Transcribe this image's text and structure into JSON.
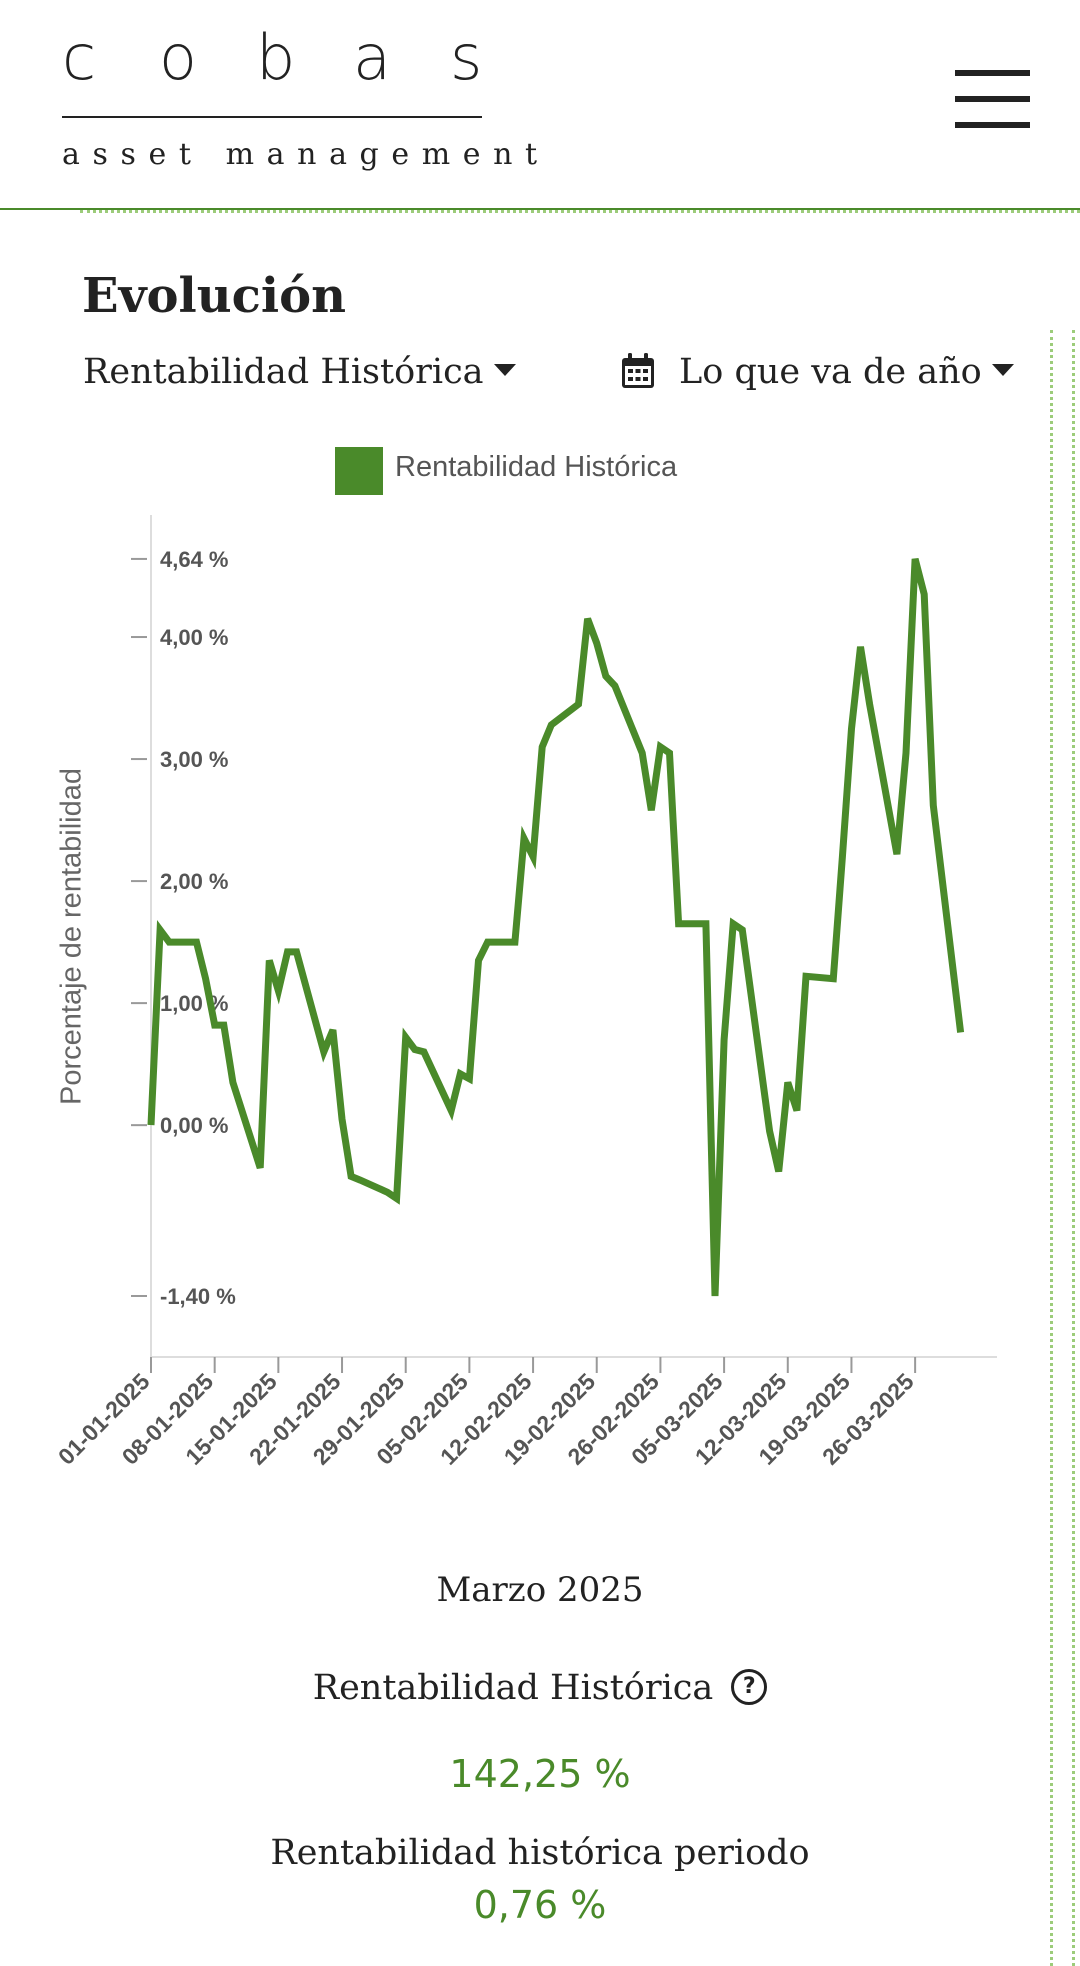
{
  "header": {
    "logo_letters": [
      "c",
      "o",
      "b",
      "a",
      "s"
    ],
    "logo_subtitle": "asset management",
    "menu_icon": "hamburger-menu-icon"
  },
  "section": {
    "title": "Evolución",
    "metric_dropdown": "Rentabilidad Histórica",
    "period_dropdown": "Lo que va de año",
    "calendar_icon": "calendar-icon"
  },
  "colors": {
    "accent": "#4a8a2a",
    "text": "#222222",
    "axis": "#dddddd"
  },
  "chart_data": {
    "type": "line",
    "legend": "Rentabilidad Histórica",
    "legend_position": "top",
    "ylabel": "Porcentaje de rentabilidad",
    "y_tick_values": [
      4.64,
      4.0,
      3.0,
      2.0,
      1.0,
      0.0,
      -1.4
    ],
    "y_tick_labels": [
      "4,64 %",
      "4,00 %",
      "3,00 %",
      "2,00 %",
      "1,00 %",
      "0,00 %",
      "-1,40 %"
    ],
    "ylim": [
      -1.9,
      5.0
    ],
    "x_range": [
      "2025-01-01",
      "2025-04-04"
    ],
    "x_tick_dates": [
      "2025-01-01",
      "2025-01-08",
      "2025-01-15",
      "2025-01-22",
      "2025-01-29",
      "2025-02-05",
      "2025-02-12",
      "2025-02-19",
      "2025-02-26",
      "2025-03-05",
      "2025-03-12",
      "2025-03-19",
      "2025-03-26"
    ],
    "x_tick_labels": [
      "01-01-2025",
      "08-01-2025",
      "15-01-2025",
      "22-01-2025",
      "29-01-2025",
      "05-02-2025",
      "12-02-2025",
      "19-02-2025",
      "26-02-2025",
      "05-03-2025",
      "12-03-2025",
      "19-03-2025",
      "26-03-2025"
    ],
    "grid": false,
    "series": [
      {
        "name": "Rentabilidad Histórica",
        "dates": [
          "2025-01-01",
          "2025-01-02",
          "2025-01-03",
          "2025-01-06",
          "2025-01-07",
          "2025-01-08",
          "2025-01-09",
          "2025-01-10",
          "2025-01-13",
          "2025-01-14",
          "2025-01-15",
          "2025-01-16",
          "2025-01-17",
          "2025-01-20",
          "2025-01-21",
          "2025-01-22",
          "2025-01-23",
          "2025-01-24",
          "2025-01-27",
          "2025-01-28",
          "2025-01-29",
          "2025-01-30",
          "2025-01-31",
          "2025-02-03",
          "2025-02-04",
          "2025-02-05",
          "2025-02-06",
          "2025-02-07",
          "2025-02-10",
          "2025-02-11",
          "2025-02-12",
          "2025-02-13",
          "2025-02-14",
          "2025-02-17",
          "2025-02-18",
          "2025-02-19",
          "2025-02-20",
          "2025-02-21",
          "2025-02-24",
          "2025-02-25",
          "2025-02-26",
          "2025-02-27",
          "2025-02-28",
          "2025-03-03",
          "2025-03-04",
          "2025-03-05",
          "2025-03-06",
          "2025-03-07",
          "2025-03-10",
          "2025-03-11",
          "2025-03-12",
          "2025-03-13",
          "2025-03-14",
          "2025-03-17",
          "2025-03-18",
          "2025-03-19",
          "2025-03-20",
          "2025-03-21",
          "2025-03-24",
          "2025-03-25",
          "2025-03-26",
          "2025-03-27",
          "2025-03-28",
          "2025-03-31"
        ],
        "values": [
          0.0,
          1.6,
          1.5,
          1.5,
          1.2,
          0.82,
          0.82,
          0.35,
          -0.35,
          1.35,
          1.1,
          1.42,
          1.42,
          0.6,
          0.78,
          0.05,
          -0.42,
          -0.45,
          -0.55,
          -0.6,
          0.72,
          0.62,
          0.6,
          0.12,
          0.42,
          0.38,
          1.35,
          1.5,
          1.5,
          2.35,
          2.2,
          3.1,
          3.28,
          3.45,
          4.15,
          3.95,
          3.68,
          3.6,
          3.05,
          2.58,
          3.1,
          3.05,
          1.65,
          1.65,
          -1.4,
          0.7,
          1.65,
          1.6,
          -0.05,
          -0.38,
          0.35,
          0.12,
          1.22,
          1.2,
          2.2,
          3.25,
          3.92,
          3.45,
          2.22,
          3.05,
          4.64,
          4.35,
          2.62,
          0.76
        ]
      }
    ]
  },
  "summary": {
    "date": "Marzo 2025",
    "label": "Rentabilidad Histórica",
    "help_icon": "question-circle-icon",
    "value": "142,25 %",
    "period_label": "Rentabilidad histórica periodo",
    "period_value": "0,76 %"
  }
}
